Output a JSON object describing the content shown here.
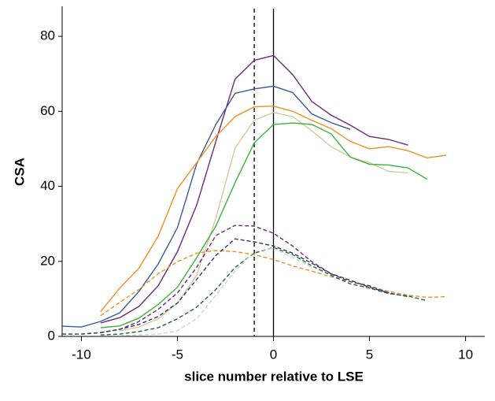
{
  "chart_data": {
    "type": "line",
    "x_label": "slice number relative to LSE",
    "y_label": "CSA",
    "xlim": [
      -11,
      11
    ],
    "ylim": [
      0,
      88
    ],
    "xticks": [
      -10,
      -5,
      0,
      5,
      10
    ],
    "yticks": [
      0,
      20,
      40,
      60,
      80
    ],
    "vlines": [
      {
        "x": -1,
        "dashed": true
      },
      {
        "x": 0,
        "dashed": false
      }
    ],
    "series": [
      {
        "color": "#6b2a7c",
        "dashed": false,
        "x": [
          -9,
          -8,
          -7,
          -6,
          -5,
          -4,
          -3,
          -2,
          -1,
          0,
          1,
          2,
          3,
          4,
          5,
          6,
          7
        ],
        "values": [
          3.6,
          5,
          8,
          13.5,
          22.6,
          35,
          52,
          68.6,
          73.6,
          74.9,
          69.8,
          62.6,
          59,
          56.3,
          53.3,
          52.5,
          51
        ]
      },
      {
        "color": "#3b5a9b",
        "dashed": false,
        "x": [
          -11,
          -10,
          -9,
          -8,
          -7,
          -6,
          -5,
          -4,
          -3,
          -2,
          -1,
          0,
          1,
          2,
          3,
          4
        ],
        "values": [
          2.7,
          2.5,
          4,
          6.3,
          12,
          19.3,
          29,
          46,
          56.5,
          64.8,
          66,
          66.7,
          65,
          59.3,
          57,
          55.2
        ]
      },
      {
        "color": "#f0901e",
        "dashed": false,
        "x": [
          -9,
          -8,
          -7,
          -6,
          -5,
          -4,
          -3,
          -2,
          -1,
          0,
          1,
          2,
          3,
          4,
          5,
          6,
          7,
          8,
          9
        ],
        "values": [
          6.6,
          12.9,
          18.2,
          26.7,
          39.4,
          46.3,
          53.3,
          58.6,
          61.2,
          61.4,
          60,
          57.6,
          55.4,
          52,
          50,
          50.6,
          49.5,
          47.6,
          48.3
        ]
      },
      {
        "color": "#d4c99a",
        "dashed": false,
        "x": [
          -8,
          -7,
          -6,
          -5,
          -4,
          -3,
          -2,
          -1,
          0,
          1,
          2,
          3,
          4,
          5,
          6,
          7
        ],
        "values": [
          1.5,
          2.5,
          4.7,
          8.9,
          16.3,
          31.5,
          50.2,
          57.6,
          59.7,
          58.6,
          54.8,
          50.6,
          47.8,
          46.3,
          44,
          43.6
        ]
      },
      {
        "color": "#3cb43c",
        "dashed": false,
        "x": [
          -9,
          -8,
          -7,
          -6,
          -5,
          -4,
          -3,
          -2,
          -1,
          0,
          1,
          2,
          3,
          4,
          5,
          6,
          7,
          8
        ],
        "values": [
          2.3,
          2.8,
          4.9,
          8.5,
          13.1,
          21,
          29.4,
          41,
          51.6,
          56.5,
          56.9,
          56.5,
          54,
          47.8,
          45.9,
          45.7,
          44.9,
          41.9
        ]
      },
      {
        "color": "#f0901e",
        "dashed": true,
        "x": [
          -9,
          -8,
          -7,
          -6,
          -5,
          -4,
          -3,
          -2,
          -1,
          0,
          1,
          2,
          3,
          4,
          5,
          6,
          7,
          8,
          9
        ],
        "values": [
          5.5,
          9.1,
          12.5,
          16.7,
          19.9,
          22.2,
          22.9,
          22.6,
          21.8,
          20.5,
          18.8,
          17.4,
          15.9,
          14.6,
          13.3,
          12,
          11,
          10.4,
          10.6
        ]
      },
      {
        "color": "#6b2a7c",
        "dashed": true,
        "x": [
          -9,
          -8,
          -7,
          -6,
          -5,
          -4,
          -3,
          -2,
          -1,
          0,
          1,
          2,
          3,
          4,
          5,
          6,
          7
        ],
        "values": [
          1,
          1.9,
          4,
          7.2,
          11.6,
          18.4,
          26.9,
          29.6,
          29.4,
          27.5,
          24.1,
          19.9,
          16.7,
          14.6,
          13.5,
          11.6,
          10.6
        ]
      },
      {
        "color": "#2a3a6b",
        "dashed": true,
        "x": [
          -11,
          -10,
          -9,
          -8,
          -7,
          -6,
          -5,
          -4,
          -3,
          -2,
          -1,
          0,
          1,
          2,
          3,
          4,
          5,
          6
        ],
        "values": [
          0.6,
          0.6,
          1,
          1.9,
          3.2,
          5.3,
          8.9,
          15.2,
          21.6,
          26,
          25.2,
          24.1,
          22.2,
          19.5,
          16.7,
          15,
          13.1,
          11.6
        ]
      },
      {
        "color": "#1e6446",
        "dashed": true,
        "x": [
          -9,
          -8,
          -7,
          -6,
          -5,
          -4,
          -3,
          -2,
          -1,
          0,
          1,
          2,
          3,
          4,
          5,
          6,
          7,
          8
        ],
        "values": [
          0.4,
          0.6,
          1.3,
          2.3,
          4.7,
          7.8,
          12.5,
          18.4,
          22.2,
          23.7,
          21.8,
          18.8,
          16.3,
          14,
          12.9,
          11.4,
          10.8,
          9.5
        ]
      },
      {
        "color": "#d0d0d0",
        "dashed": true,
        "x": [
          -8,
          -7,
          -6,
          -5,
          -4,
          -3,
          -2,
          -1,
          0,
          1,
          2
        ],
        "values": [
          0.2,
          0.4,
          0.6,
          1.5,
          4.7,
          11,
          17.4,
          22.6,
          23.5,
          21,
          18.4
        ]
      }
    ]
  }
}
